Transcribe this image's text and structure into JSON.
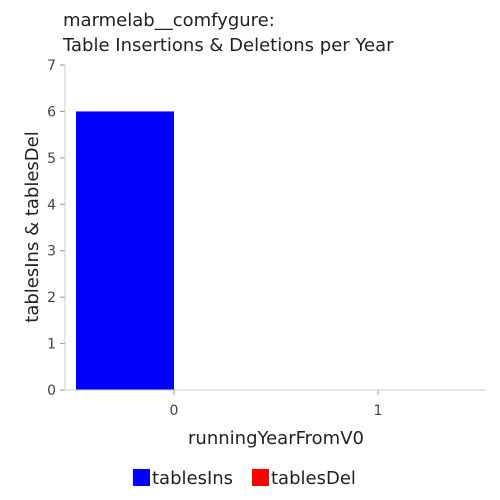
{
  "chart_data": {
    "type": "bar",
    "title_line1": "marmelab__comfygure:",
    "title_line2": "Table Insertions & Deletions per Year",
    "xlabel": "runningYearFromV0",
    "ylabel": "tablesIns & tablesDel",
    "categories": [
      "0",
      "1"
    ],
    "series": [
      {
        "name": "tablesIns",
        "values": [
          6,
          0
        ],
        "color": "#0000ff"
      },
      {
        "name": "tablesDel",
        "values": [
          0,
          0
        ],
        "color": "#ff0000"
      }
    ],
    "ylim": [
      0,
      7
    ],
    "yticks": [
      "0",
      "1",
      "2",
      "3",
      "4",
      "5",
      "6",
      "7"
    ],
    "grid": false,
    "legend_position": "bottom"
  }
}
